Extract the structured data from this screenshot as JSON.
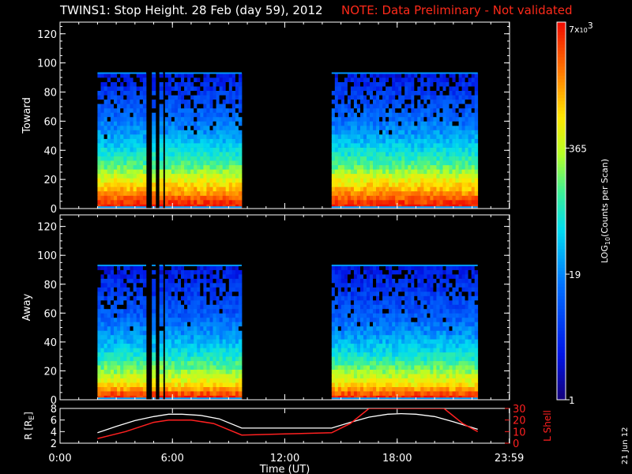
{
  "title": {
    "main": "TWINS1: Stop Height. 28 Feb (day  59), 2012",
    "note": "NOTE: Data Preliminary - Not validated"
  },
  "stamp": "21 Jun 12",
  "colors": {
    "note": "#ff2a1a",
    "line_r": "#ffffff",
    "line_l": "#ff2020",
    "axis": "#ffffff"
  },
  "chart_data": [
    {
      "type": "heatmap",
      "panel": "toward",
      "ylabel": "Toward",
      "ylim": [
        0,
        128
      ],
      "yticks": [
        "0",
        "20",
        "40",
        "60",
        "80",
        "100",
        "120"
      ],
      "xlim_hours": [
        0,
        24
      ],
      "data_blocks_hours": [
        [
          2.0,
          4.6
        ],
        [
          4.9,
          5.1
        ],
        [
          5.3,
          5.5
        ],
        [
          5.6,
          9.7
        ],
        [
          14.5,
          22.3
        ]
      ],
      "top_height": 93,
      "colormap": "rainbow",
      "profile_by_height": [
        [
          0,
          7000
        ],
        [
          4,
          5000
        ],
        [
          12,
          1500
        ],
        [
          20,
          600
        ],
        [
          30,
          150
        ],
        [
          45,
          40
        ],
        [
          60,
          15
        ],
        [
          80,
          6
        ],
        [
          93,
          3
        ]
      ]
    },
    {
      "type": "heatmap",
      "panel": "away",
      "ylabel": "Away",
      "ylim": [
        0,
        128
      ],
      "yticks": [
        "0",
        "20",
        "40",
        "60",
        "80",
        "100",
        "120"
      ],
      "xlim_hours": [
        0,
        24
      ],
      "data_blocks_hours": [
        [
          2.0,
          4.6
        ],
        [
          4.9,
          5.1
        ],
        [
          5.3,
          5.5
        ],
        [
          5.6,
          9.7
        ],
        [
          14.5,
          22.3
        ]
      ],
      "top_height": 93,
      "colormap": "rainbow",
      "profile_by_height": [
        [
          0,
          7000
        ],
        [
          4,
          4000
        ],
        [
          10,
          900
        ],
        [
          20,
          250
        ],
        [
          30,
          80
        ],
        [
          45,
          25
        ],
        [
          60,
          10
        ],
        [
          80,
          5
        ],
        [
          93,
          3
        ]
      ]
    },
    {
      "type": "line",
      "panel": "orbit",
      "ylabel": "R [R",
      "ylabel_sub": "E",
      "ylabel_close": "]",
      "ylim": [
        2,
        8
      ],
      "yticks": [
        "2",
        "4",
        "6",
        "8"
      ],
      "ylabel2": "L Shell",
      "ylim2": [
        0,
        30
      ],
      "yticks2": [
        "0",
        "10",
        "20",
        "30"
      ],
      "xlabel": "Time (UT)",
      "xticks": [
        {
          "t": 0,
          "label": "0:00"
        },
        {
          "t": 6,
          "label": "6:00"
        },
        {
          "t": 12,
          "label": "12:00"
        },
        {
          "t": 18,
          "label": "18:00"
        },
        {
          "t": 23.983,
          "label": "23:59"
        }
      ],
      "series": [
        {
          "axis": "left",
          "x": [
            2.0,
            3.0,
            4.0,
            5.0,
            5.8,
            6.5,
            7.5,
            8.5,
            9.7,
            12.0,
            14.5,
            15.5,
            16.5,
            17.5,
            18.2,
            19.0,
            20.0,
            21.0,
            22.3
          ],
          "y": [
            3.8,
            4.9,
            5.9,
            6.6,
            7.0,
            7.0,
            6.8,
            6.2,
            4.6,
            4.6,
            4.6,
            5.6,
            6.5,
            7.0,
            7.1,
            7.0,
            6.6,
            5.7,
            4.4
          ]
        },
        {
          "axis": "right",
          "x": [
            2.0,
            3.5,
            5.0,
            5.8,
            7.0,
            8.2,
            9.7,
            12.0,
            14.5,
            15.5,
            16.5,
            20.5,
            21.5,
            22.3
          ],
          "y": [
            4,
            10,
            18,
            20,
            20,
            17,
            7,
            8,
            9,
            17,
            30,
            30,
            17,
            10
          ]
        }
      ]
    },
    {
      "type": "heatmap",
      "panel": "colorbar",
      "ylabel": "LOG",
      "ylabel_sub": "10",
      "ylabel_rest": "(Counts per Scan)",
      "log_range": [
        1,
        7000
      ],
      "ticks": [
        {
          "value": 1,
          "label": "1"
        },
        {
          "value": 19,
          "label": "19"
        },
        {
          "value": 365,
          "label": "365"
        }
      ],
      "top_label_mantissa": "7x",
      "top_label_base": "10",
      "top_label_exp": "3"
    }
  ]
}
